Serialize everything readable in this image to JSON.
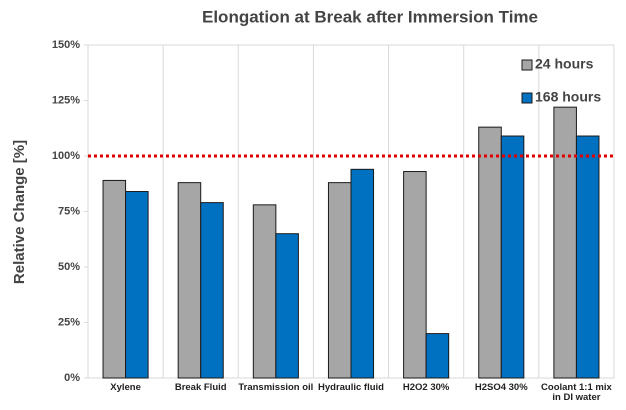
{
  "chart_data": {
    "type": "bar",
    "title": "Elongation at Break after Immersion Time",
    "y_label": "Relative Change [%]",
    "categories": [
      "Xylene",
      "Break Fluid",
      "Transmission oil",
      "Hydraulic fluid",
      "H2O2 30%",
      "H2SO4 30%",
      "Coolant 1:1 mix in DI water"
    ],
    "series": [
      {
        "name": "24 hours",
        "color": "#a6a6a6",
        "values": [
          89,
          88,
          78,
          88,
          93,
          113,
          122
        ]
      },
      {
        "name": "168 hours",
        "color": "#0070c0",
        "values": [
          84,
          79,
          65,
          94,
          20,
          109,
          109
        ]
      }
    ],
    "ylim": [
      0,
      150
    ],
    "yticks": [
      {
        "value": 0,
        "label": "0%"
      },
      {
        "value": 25,
        "label": "25%"
      },
      {
        "value": 50,
        "label": "50%"
      },
      {
        "value": 75,
        "label": "75%"
      },
      {
        "value": 100,
        "label": "100%"
      },
      {
        "value": 125,
        "label": "125%"
      },
      {
        "value": 150,
        "label": "150%"
      }
    ],
    "reference_line": {
      "value": 100,
      "color": "#e00000"
    },
    "legend": "upper right"
  }
}
